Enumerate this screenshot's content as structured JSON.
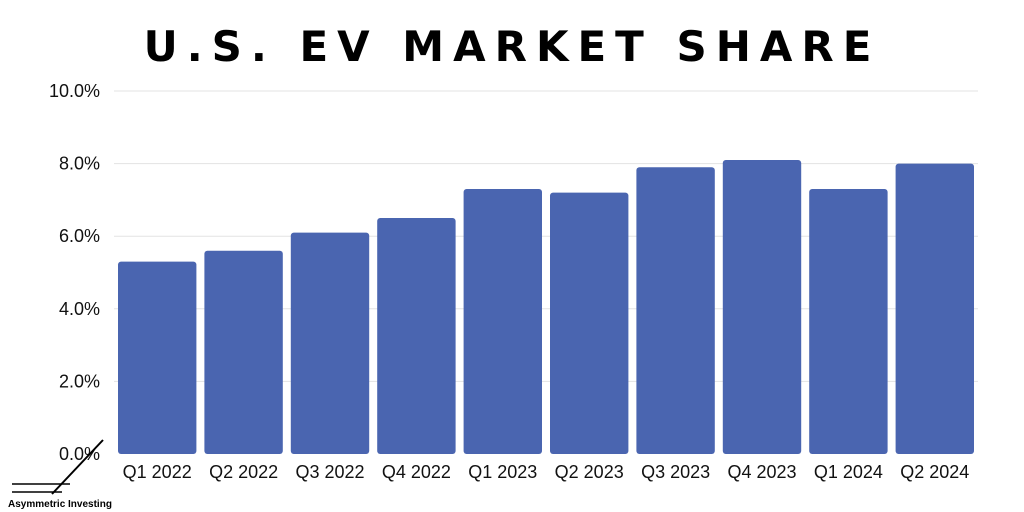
{
  "chart_data": {
    "type": "bar",
    "title": "U.S. EV MARKET SHARE",
    "categories": [
      "Q1 2022",
      "Q2 2022",
      "Q3 2022",
      "Q4 2022",
      "Q1 2023",
      "Q2 2023",
      "Q3 2023",
      "Q4 2023",
      "Q1 2024",
      "Q2 2024"
    ],
    "values": [
      5.3,
      5.6,
      6.1,
      6.5,
      7.3,
      7.2,
      7.9,
      8.1,
      7.3,
      8.0
    ],
    "ylim": [
      0,
      10
    ],
    "yticks": [
      "0.0%",
      "2.0%",
      "4.0%",
      "6.0%",
      "8.0%",
      "10.0%"
    ],
    "xlabel": "",
    "ylabel": "",
    "grid": true,
    "bar_color": "#4a65b0"
  },
  "brand": {
    "name": "Asymmetric Investing"
  }
}
